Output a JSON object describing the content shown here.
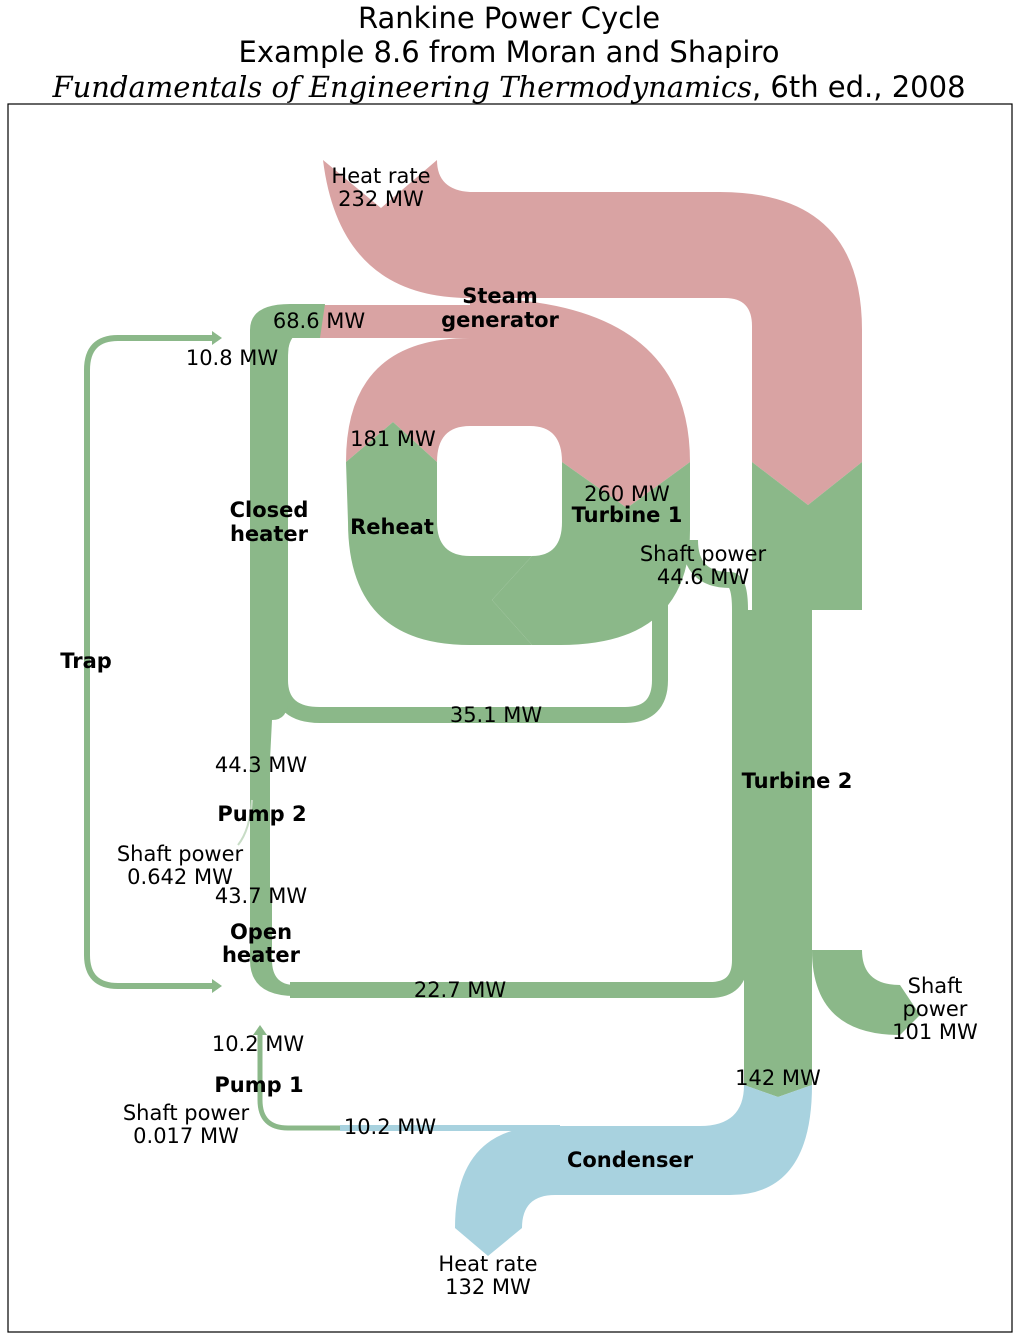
{
  "title": {
    "line1": "Rankine Power Cycle",
    "line2": "Example 8.6 from Moran and Shapiro",
    "line3_italic": "Fundamentals of Engineering Thermodynamics",
    "line3_rest": ", 6th ed., 2008"
  },
  "colors": {
    "steam_generator": "#d9a3a3",
    "cycle": "#8bb889",
    "condenser": "#a8d2df",
    "frame": "#000000"
  },
  "nodes": {
    "steam_generator": [
      "Steam",
      "generator"
    ],
    "reheat": "Reheat",
    "turbine1": "Turbine 1",
    "turbine2": "Turbine 2",
    "closed_heater": [
      "Closed",
      "heater"
    ],
    "trap": "Trap",
    "pump2": "Pump 2",
    "open_heater": [
      "Open",
      "heater"
    ],
    "pump1": "Pump 1",
    "condenser": "Condenser"
  },
  "flows": {
    "heat_in": [
      "Heat rate",
      "232 MW"
    ],
    "sg_68_6": "68.6 MW",
    "trap_10_8": "10.8 MW",
    "reheat_181": "181 MW",
    "t1_260": "260 MW",
    "t1_shaft": [
      "Shaft power",
      "44.6 MW"
    ],
    "bleed_35_1": "35.1 MW",
    "p2_in_44_3": "44.3 MW",
    "p2_shaft": [
      "Shaft power",
      "0.642 MW"
    ],
    "p2_out_43_7": "43.7 MW",
    "open_22_7": "22.7 MW",
    "t2_shaft": [
      "Shaft",
      "power",
      "101 MW"
    ],
    "p1_10_2_top": "10.2 MW",
    "t2_142": "142 MW",
    "p1_shaft": [
      "Shaft power",
      "0.017 MW"
    ],
    "cond_10_2": "10.2 MW",
    "heat_out": [
      "Heat rate",
      "132 MW"
    ]
  }
}
